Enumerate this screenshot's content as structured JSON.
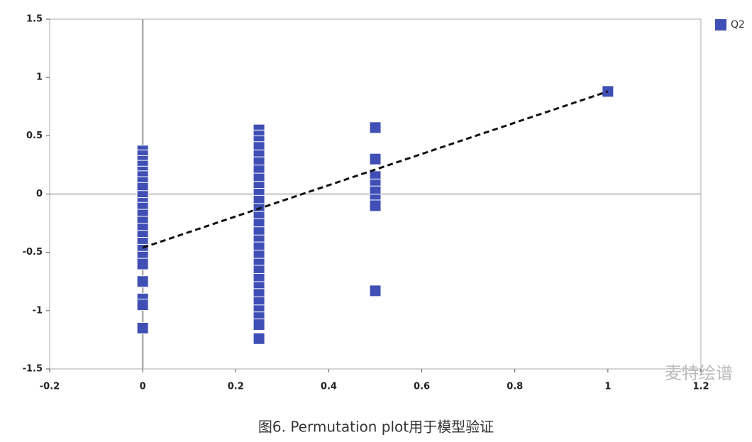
{
  "chart_data": {
    "type": "scatter",
    "x": [
      0,
      0,
      0,
      0,
      0,
      0,
      0,
      0,
      0,
      0,
      0,
      0,
      0,
      0,
      0,
      0,
      0,
      0,
      0,
      0,
      0,
      0,
      0,
      0.25,
      0.25,
      0.25,
      0.25,
      0.25,
      0.25,
      0.25,
      0.25,
      0.25,
      0.25,
      0.25,
      0.25,
      0.25,
      0.25,
      0.25,
      0.25,
      0.25,
      0.25,
      0.25,
      0.25,
      0.25,
      0.25,
      0.25,
      0.25,
      0.25,
      0.25,
      0.25,
      0.25,
      0.5,
      0.5,
      0.5,
      0.5,
      0.5,
      0.5,
      0.5,
      0.5,
      1
    ],
    "series": [
      {
        "name": "Q2",
        "color": "#3f4fb5",
        "values": [
          0.37,
          0.33,
          0.28,
          0.24,
          0.19,
          0.15,
          0.1,
          0.05,
          -0.02,
          -0.08,
          -0.12,
          -0.18,
          -0.24,
          -0.3,
          -0.36,
          -0.42,
          -0.48,
          -0.54,
          -0.6,
          -0.75,
          -0.9,
          -0.95,
          -1.15,
          0.55,
          0.5,
          0.45,
          0.4,
          0.33,
          0.27,
          0.2,
          0.13,
          0.06,
          0,
          -0.06,
          -0.13,
          -0.2,
          -0.26,
          -0.33,
          -0.4,
          -0.46,
          -0.53,
          -0.6,
          -0.66,
          -0.73,
          -0.8,
          -0.86,
          -0.93,
          -1.0,
          -1.06,
          -1.12,
          -1.24,
          0.57,
          0.3,
          0.15,
          0.08,
          0.02,
          -0.05,
          -0.1,
          -0.83,
          0.88
        ]
      }
    ],
    "fit_line": {
      "x": [
        0,
        1
      ],
      "y": [
        -0.46,
        0.88
      ]
    },
    "xlim": [
      -0.2,
      1.2
    ],
    "xticks": [
      -0.2,
      0,
      0.2,
      0.4,
      0.6,
      0.8,
      1,
      1.2
    ],
    "ylim": [
      -1.5,
      1.5
    ],
    "yticks": [
      -1.5,
      -1,
      -0.5,
      0,
      0.5,
      1,
      1.5
    ],
    "legend": "top-right",
    "caption": "图6. Permutation plot用于模型验证",
    "watermark": "麦特绘谱"
  }
}
